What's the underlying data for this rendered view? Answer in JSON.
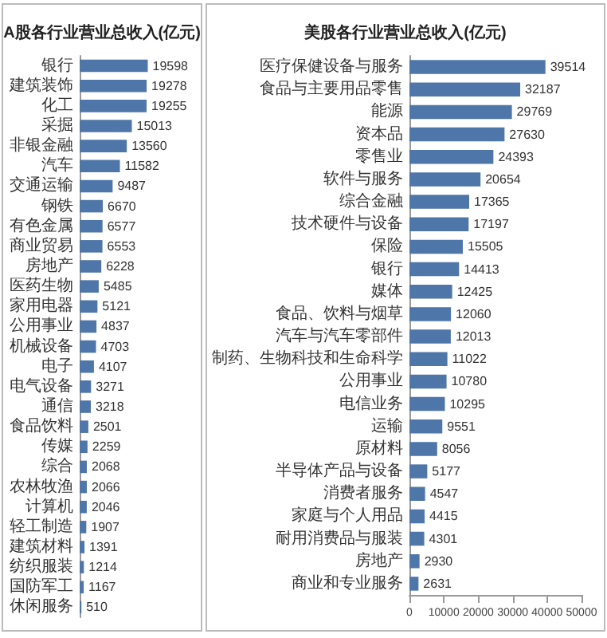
{
  "chart_data": [
    {
      "type": "bar",
      "orientation": "horizontal",
      "title": "A股各行业营业总收入(亿元)",
      "categories": [
        "银行",
        "建筑装饰",
        "化工",
        "采掘",
        "非银金融",
        "汽车",
        "交通运输",
        "钢铁",
        "有色金属",
        "商业贸易",
        "房地产",
        "医药生物",
        "家用电器",
        "公用事业",
        "机械设备",
        "电子",
        "电气设备",
        "通信",
        "食品饮料",
        "传媒",
        "综合",
        "农林牧渔",
        "计算机",
        "轻工制造",
        "建筑材料",
        "纺织服装",
        "国防军工",
        "休闲服务"
      ],
      "values": [
        19598,
        19278,
        19255,
        15013,
        13560,
        11582,
        9487,
        6670,
        6577,
        6553,
        6228,
        5485,
        5121,
        4837,
        4703,
        4107,
        3271,
        3218,
        2501,
        2259,
        2068,
        2066,
        2046,
        1907,
        1391,
        1214,
        1167,
        510
      ],
      "color": "#4f76a8",
      "data_labels": true,
      "grid": false,
      "tick_labels": "y"
    },
    {
      "type": "bar",
      "orientation": "horizontal",
      "title": "美股各行业营业总收入(亿元)",
      "categories": [
        "医疗保健设备与服务",
        "食品与主要用品零售",
        "能源",
        "资本品",
        "零售业",
        "软件与服务",
        "综合金融",
        "技术硬件与设备",
        "保险",
        "银行",
        "媒体",
        "食品、饮料与烟草",
        "汽车与汽车零部件",
        "制药、生物科技和生命科学",
        "公用事业",
        "电信业务",
        "运输",
        "原材料",
        "半导体产品与设备",
        "消费者服务",
        "家庭与个人用品",
        "耐用消费品与服装",
        "房地产",
        "商业和专业服务"
      ],
      "values": [
        39514,
        32187,
        29769,
        27630,
        24393,
        20654,
        17365,
        17197,
        15505,
        14413,
        12425,
        12060,
        12013,
        11022,
        10780,
        10295,
        9551,
        8056,
        5177,
        4547,
        4415,
        4301,
        2930,
        2631
      ],
      "color": "#4f76a8",
      "data_labels": true,
      "grid": false,
      "xlim": [
        0,
        50000
      ],
      "xticks": [
        0,
        10000,
        20000,
        30000,
        40000,
        50000
      ]
    }
  ]
}
